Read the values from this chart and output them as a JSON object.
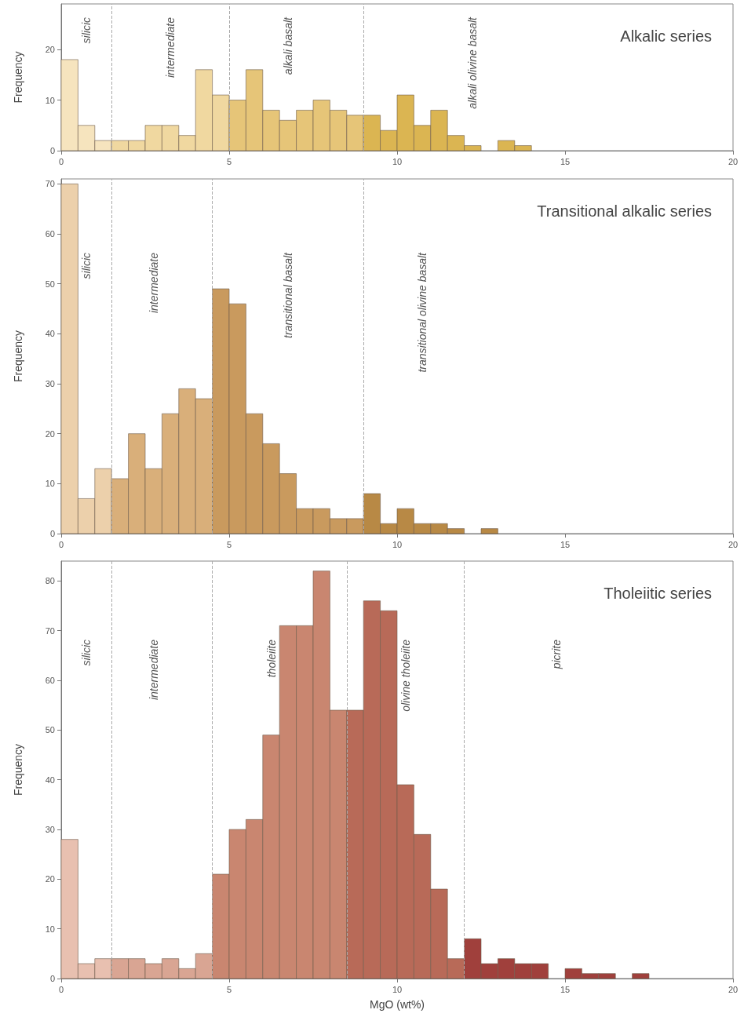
{
  "chart_data": [
    {
      "type": "histogram",
      "title": "Alkalic series",
      "ylabel": "Frequency",
      "bins": [
        0,
        0.5,
        1,
        1.5,
        2,
        2.5,
        3,
        3.5,
        4,
        4.5,
        5,
        5.5,
        6,
        6.5,
        7,
        7.5,
        8,
        8.5,
        9,
        9.5,
        10,
        10.5,
        11,
        11.5,
        12,
        12.5,
        13,
        13.5,
        14
      ],
      "values": [
        18,
        5,
        2,
        2,
        2,
        5,
        5,
        3,
        16,
        11,
        10,
        16,
        8,
        6,
        8,
        10,
        8,
        7,
        7,
        4,
        11,
        5,
        8,
        3,
        1,
        0,
        2,
        1
      ],
      "colors": [
        "#f6e4be",
        "#f6e4be",
        "#f6e4be",
        "#f0d8a0",
        "#f0d8a0",
        "#f0d8a0",
        "#f0d8a0",
        "#f0d8a0",
        "#f0d8a0",
        "#f0d8a0",
        "#e6c578",
        "#e6c578",
        "#e6c578",
        "#e6c578",
        "#e6c578",
        "#e6c578",
        "#e6c578",
        "#e6c578",
        "#dbb552",
        "#dbb552",
        "#dbb552",
        "#dbb552",
        "#dbb552",
        "#dbb552",
        "#dbb552",
        null,
        "#dbb552",
        "#dbb552"
      ],
      "xlim": [
        0,
        20
      ],
      "xticks": [
        0,
        5,
        10,
        15,
        20
      ],
      "ylim": [
        0,
        29
      ],
      "yticks": [
        0,
        10,
        20
      ],
      "grid": false,
      "ref_lines": [
        {
          "axis": "x",
          "value": 1.5,
          "color": "#aaaaaa",
          "line_style": "dashed"
        },
        {
          "axis": "x",
          "value": 5,
          "color": "#aaaaaa",
          "line_style": "dashed"
        },
        {
          "axis": "x",
          "value": 9,
          "color": "#aaaaaa",
          "line_style": "dashed"
        }
      ],
      "annotations": [
        "silicic",
        "intermediate",
        "alkali basalt",
        "alkali olivine basalt"
      ]
    },
    {
      "type": "histogram",
      "title": "Transitional alkalic series",
      "ylabel": "Frequency",
      "bins": [
        0,
        0.5,
        1,
        1.5,
        2,
        2.5,
        3,
        3.5,
        4,
        4.5,
        5,
        5.5,
        6,
        6.5,
        7,
        7.5,
        8,
        8.5,
        9,
        9.5,
        10,
        10.5,
        11,
        11.5,
        12,
        12.5,
        13
      ],
      "values": [
        70,
        7,
        13,
        11,
        20,
        13,
        24,
        29,
        27,
        49,
        46,
        24,
        18,
        12,
        5,
        5,
        3,
        3,
        8,
        2,
        5,
        2,
        2,
        1,
        0,
        1
      ],
      "colors": [
        "#ecd0ab",
        "#ecd0ab",
        "#ecd0ab",
        "#d9af7a",
        "#d9af7a",
        "#d9af7a",
        "#d9af7a",
        "#d9af7a",
        "#d9af7a",
        "#c99a5e",
        "#c99a5e",
        "#c99a5e",
        "#c99a5e",
        "#c99a5e",
        "#c99a5e",
        "#c99a5e",
        "#c99a5e",
        "#c99a5e",
        "#b88945",
        "#b88945",
        "#b88945",
        "#b88945",
        "#b88945",
        "#b88945",
        null,
        "#b88945"
      ],
      "xlim": [
        0,
        20
      ],
      "xticks": [
        0,
        5,
        10,
        15,
        20
      ],
      "ylim": [
        0,
        71
      ],
      "yticks": [
        0,
        10,
        20,
        30,
        40,
        50,
        60,
        70
      ],
      "grid": false,
      "ref_lines": [
        {
          "axis": "x",
          "value": 1.5,
          "color": "#aaaaaa",
          "line_style": "dashed"
        },
        {
          "axis": "x",
          "value": 4.5,
          "color": "#aaaaaa",
          "line_style": "dashed"
        },
        {
          "axis": "x",
          "value": 9,
          "color": "#aaaaaa",
          "line_style": "dashed"
        }
      ],
      "annotations": [
        "silicic",
        "intermediate",
        "transitional basalt",
        "transitional olivine basalt"
      ]
    },
    {
      "type": "histogram",
      "title": "Tholeiitic series",
      "xlabel": "MgO (wt%)",
      "ylabel": "Frequency",
      "bins": [
        0,
        0.5,
        1,
        1.5,
        2,
        2.5,
        3,
        3.5,
        4,
        4.5,
        5,
        5.5,
        6,
        6.5,
        7,
        7.5,
        8,
        8.5,
        9,
        9.5,
        10,
        10.5,
        11,
        11.5,
        12,
        12.5,
        13,
        13.5,
        14,
        14.5,
        15,
        15.5,
        16,
        16.5,
        17,
        17.5
      ],
      "values": [
        28,
        3,
        4,
        4,
        4,
        3,
        4,
        2,
        5,
        21,
        30,
        32,
        49,
        71,
        71,
        82,
        54,
        54,
        76,
        74,
        39,
        29,
        18,
        4,
        8,
        3,
        4,
        3,
        3,
        0,
        2,
        1,
        1,
        0,
        1
      ],
      "colors": [
        "#e8c0b0",
        "#e8c0b0",
        "#e8c0b0",
        "#d9a593",
        "#d9a593",
        "#d9a593",
        "#d9a593",
        "#d9a593",
        "#d9a593",
        "#c98670",
        "#c98670",
        "#c98670",
        "#c98670",
        "#c98670",
        "#c98670",
        "#c98670",
        "#c98670",
        "#b86a58",
        "#b86a58",
        "#b86a58",
        "#b86a58",
        "#b86a58",
        "#b86a58",
        "#b86a58",
        "#a0403c",
        "#a0403c",
        "#a0403c",
        "#a0403c",
        "#a0403c",
        null,
        "#a0403c",
        "#a0403c",
        "#a0403c",
        null,
        "#a0403c"
      ],
      "xlim": [
        0,
        20
      ],
      "xticks": [
        0,
        5,
        10,
        15,
        20
      ],
      "ylim": [
        0,
        84
      ],
      "yticks": [
        0,
        10,
        20,
        30,
        40,
        50,
        60,
        70,
        80
      ],
      "grid": false,
      "ref_lines": [
        {
          "axis": "x",
          "value": 1.5,
          "color": "#aaaaaa",
          "line_style": "dashed"
        },
        {
          "axis": "x",
          "value": 4.5,
          "color": "#aaaaaa",
          "line_style": "dashed"
        },
        {
          "axis": "x",
          "value": 8.5,
          "color": "#aaaaaa",
          "line_style": "dashed"
        },
        {
          "axis": "x",
          "value": 12,
          "color": "#aaaaaa",
          "line_style": "dashed"
        }
      ],
      "annotations": [
        "silicic",
        "intermediate",
        "tholeiite",
        "olivine tholeiite",
        "picrite"
      ]
    }
  ]
}
